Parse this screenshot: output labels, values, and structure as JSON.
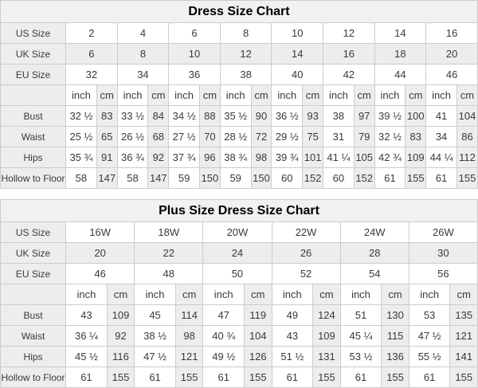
{
  "colors": {
    "border": "#cccccc",
    "shade": "#ededed",
    "title-bg": "#f1f1f1",
    "text": "#3a3a3a",
    "title-text": "#000000",
    "bg": "#ffffff"
  },
  "chart_data": [
    {
      "type": "table",
      "title": "Dress Size Chart",
      "unit_labels": [
        "inch",
        "cm"
      ],
      "size_rows": [
        {
          "label": "US Size",
          "values": [
            "2",
            "4",
            "6",
            "8",
            "10",
            "12",
            "14",
            "16"
          ]
        },
        {
          "label": "UK Size",
          "values": [
            "6",
            "8",
            "10",
            "12",
            "14",
            "16",
            "18",
            "20"
          ]
        },
        {
          "label": "EU Size",
          "values": [
            "32",
            "34",
            "36",
            "38",
            "40",
            "42",
            "44",
            "46"
          ]
        }
      ],
      "measure_rows": [
        {
          "label": "Bust",
          "values": [
            [
              "32 ½",
              "83"
            ],
            [
              "33 ½",
              "84"
            ],
            [
              "34 ½",
              "88"
            ],
            [
              "35 ½",
              "90"
            ],
            [
              "36 ½",
              "93"
            ],
            [
              "38",
              "97"
            ],
            [
              "39 ½",
              "100"
            ],
            [
              "41",
              "104"
            ]
          ]
        },
        {
          "label": "Waist",
          "values": [
            [
              "25 ½",
              "65"
            ],
            [
              "26 ½",
              "68"
            ],
            [
              "27 ½",
              "70"
            ],
            [
              "28 ½",
              "72"
            ],
            [
              "29 ½",
              "75"
            ],
            [
              "31",
              "79"
            ],
            [
              "32 ½",
              "83"
            ],
            [
              "34",
              "86"
            ]
          ]
        },
        {
          "label": "Hips",
          "values": [
            [
              "35 ¾",
              "91"
            ],
            [
              "36 ¾",
              "92"
            ],
            [
              "37 ¾",
              "96"
            ],
            [
              "38 ¾",
              "98"
            ],
            [
              "39 ¾",
              "101"
            ],
            [
              "41 ¼",
              "105"
            ],
            [
              "42 ¾",
              "109"
            ],
            [
              "44 ¼",
              "112"
            ]
          ]
        },
        {
          "label": "Hollow to Floor",
          "values": [
            [
              "58",
              "147"
            ],
            [
              "58",
              "147"
            ],
            [
              "59",
              "150"
            ],
            [
              "59",
              "150"
            ],
            [
              "60",
              "152"
            ],
            [
              "60",
              "152"
            ],
            [
              "61",
              "155"
            ],
            [
              "61",
              "155"
            ]
          ]
        }
      ]
    },
    {
      "type": "table",
      "title": "Plus Size Dress Size Chart",
      "unit_labels": [
        "inch",
        "cm"
      ],
      "size_rows": [
        {
          "label": "US Size",
          "values": [
            "16W",
            "18W",
            "20W",
            "22W",
            "24W",
            "26W"
          ]
        },
        {
          "label": "UK Size",
          "values": [
            "20",
            "22",
            "24",
            "26",
            "28",
            "30"
          ]
        },
        {
          "label": "EU Size",
          "values": [
            "46",
            "48",
            "50",
            "52",
            "54",
            "56"
          ]
        }
      ],
      "measure_rows": [
        {
          "label": "Bust",
          "values": [
            [
              "43",
              "109"
            ],
            [
              "45",
              "114"
            ],
            [
              "47",
              "119"
            ],
            [
              "49",
              "124"
            ],
            [
              "51",
              "130"
            ],
            [
              "53",
              "135"
            ]
          ]
        },
        {
          "label": "Waist",
          "values": [
            [
              "36 ¼",
              "92"
            ],
            [
              "38 ½",
              "98"
            ],
            [
              "40 ¾",
              "104"
            ],
            [
              "43",
              "109"
            ],
            [
              "45 ¼",
              "115"
            ],
            [
              "47 ½",
              "121"
            ]
          ]
        },
        {
          "label": "Hips",
          "values": [
            [
              "45 ½",
              "116"
            ],
            [
              "47 ½",
              "121"
            ],
            [
              "49 ½",
              "126"
            ],
            [
              "51 ½",
              "131"
            ],
            [
              "53 ½",
              "136"
            ],
            [
              "55 ½",
              "141"
            ]
          ]
        },
        {
          "label": "Hollow to Floor",
          "values": [
            [
              "61",
              "155"
            ],
            [
              "61",
              "155"
            ],
            [
              "61",
              "155"
            ],
            [
              "61",
              "155"
            ],
            [
              "61",
              "155"
            ],
            [
              "61",
              "155"
            ]
          ]
        }
      ]
    }
  ]
}
